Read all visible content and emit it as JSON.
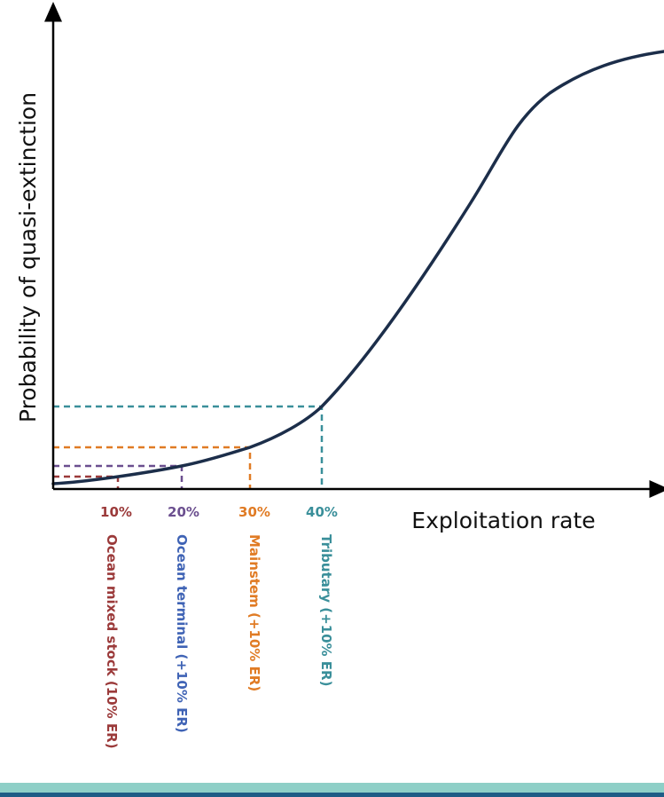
{
  "diagram": {
    "axis_labels": {
      "y": "Probability of quasi-extinction",
      "x": "Exploitation rate"
    },
    "colors": {
      "curve": "#1c2e4a",
      "axis": "#000000",
      "ocean_mixed": "#9b3a3a",
      "ocean_terminal": "#6b4f8f",
      "ocean_terminal_label": "#3f63b5",
      "mainstem": "#e07b24",
      "tributary": "#3a8f9a"
    },
    "markers": [
      {
        "tick": "10%",
        "label": "Ocean mixed stock (10% ER)",
        "color": "#9b3a3a"
      },
      {
        "tick": "20%",
        "label": "Ocean terminal (+10% ER)",
        "color": "#6b4f8f",
        "label_color": "#3f63b5"
      },
      {
        "tick": "30%",
        "label": "Mainstem (+10% ER)",
        "color": "#e07b24"
      },
      {
        "tick": "40%",
        "label": "Tributary (+10% ER)",
        "color": "#3a8f9a"
      }
    ]
  }
}
